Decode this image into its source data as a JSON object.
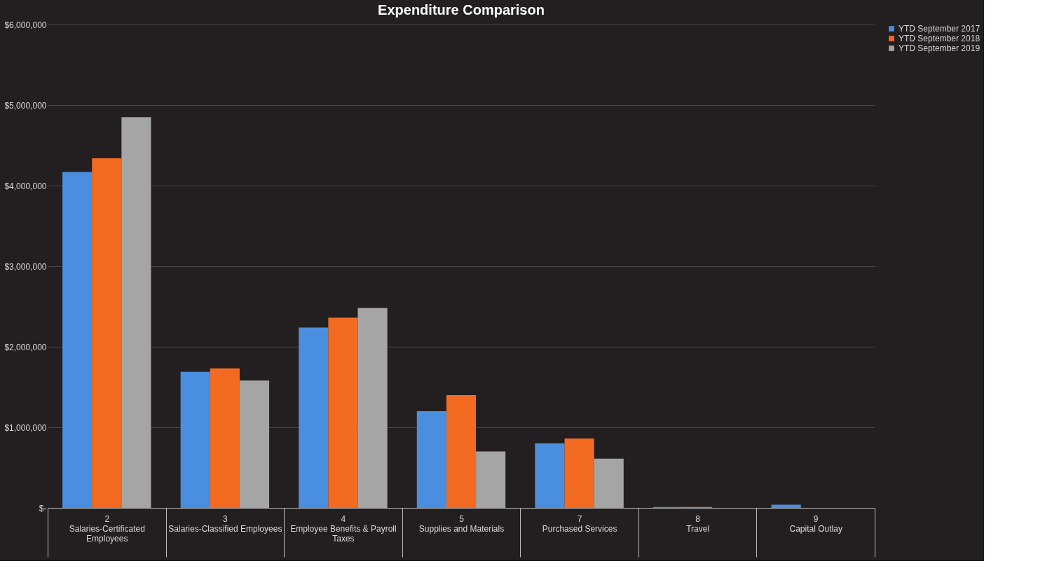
{
  "chart_data": {
    "type": "bar",
    "title": "Expenditure Comparison",
    "categories": [
      "2\nSalaries-Certificated\nEmployees",
      "3\nSalaries-Classified Employees",
      "4\nEmployee Benefits & Payroll\nTaxes",
      "5\nSupplies and Materials",
      "7\nPurchased Services",
      "8\nTravel",
      "9\nCapital Outlay"
    ],
    "series": [
      {
        "name": "YTD September 2017",
        "color": "#4a8fdf",
        "values": [
          4170000,
          1690000,
          2240000,
          1200000,
          800000,
          10000,
          40000
        ]
      },
      {
        "name": "YTD September 2018",
        "color": "#f26b21",
        "values": [
          4340000,
          1730000,
          2360000,
          1400000,
          860000,
          10000,
          0
        ]
      },
      {
        "name": "YTD September 2019",
        "color": "#a5a5a5",
        "values": [
          4850000,
          1580000,
          2480000,
          700000,
          610000,
          0,
          0
        ]
      }
    ],
    "ylim": [
      0,
      6000000
    ],
    "yticks": [
      {
        "value": 0,
        "label": "$-"
      },
      {
        "value": 1000000,
        "label": "$1,000,000"
      },
      {
        "value": 2000000,
        "label": "$2,000,000"
      },
      {
        "value": 3000000,
        "label": "$3,000,000"
      },
      {
        "value": 4000000,
        "label": "$4,000,000"
      },
      {
        "value": 5000000,
        "label": "$5,000,000"
      },
      {
        "value": 6000000,
        "label": "$6,000,000"
      }
    ],
    "grid": "y",
    "legend": "right"
  }
}
